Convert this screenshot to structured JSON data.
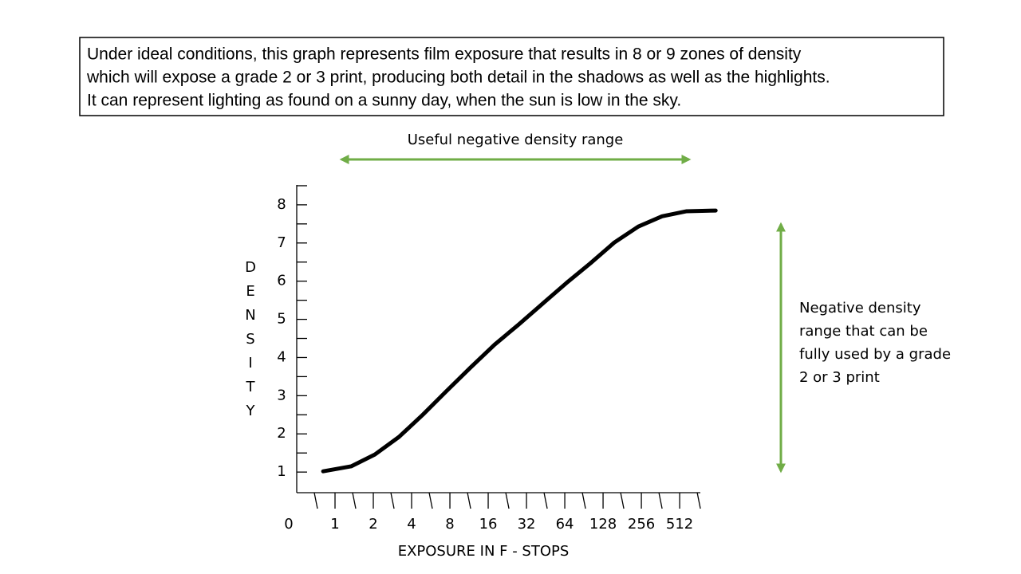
{
  "chart_data": {
    "type": "line",
    "note": [
      "Under ideal conditions, this graph represents film exposure that results in 8 or 9 zones of density",
      "which will expose a grade 2 or 3 print, producing both detail in the shadows as well as the highlights.",
      "It can represent lighting as found on a sunny day, when the sun is low in the sky."
    ],
    "top_annotation": "Useful negative density range",
    "side_annotation": [
      "Negative density",
      "range that can be",
      "fully used by a grade",
      "2 or 3 print"
    ],
    "x_label": "EXPOSURE IN F - STOPS",
    "y_label": "DENSITY",
    "x": [
      0.69,
      1.42,
      2.04,
      2.67,
      3.29,
      3.92,
      4.54,
      5.17,
      5.79,
      6.42,
      7.04,
      7.67,
      8.29,
      8.92,
      9.54,
      10.17,
      10.94
    ],
    "series": [
      {
        "color": "#000000",
        "values": [
          1.02,
          1.15,
          1.46,
          1.92,
          2.5,
          3.13,
          3.74,
          4.34,
          4.86,
          5.41,
          5.95,
          6.47,
          7.01,
          7.43,
          7.7,
          7.83,
          7.85
        ]
      }
    ],
    "xlim": [
      0,
      10.54
    ],
    "ylim": [
      0.46,
      8.52
    ],
    "xticks": [
      0,
      1,
      2,
      {
        "value": 3,
        "label": "4"
      },
      {
        "value": 4,
        "label": "8"
      },
      {
        "value": 5,
        "label": "16"
      },
      {
        "value": 6,
        "label": "32"
      },
      {
        "value": 7,
        "label": "64"
      },
      {
        "value": 8,
        "label": "128"
      },
      {
        "value": 9,
        "label": "256"
      },
      {
        "value": 10,
        "label": "512"
      }
    ],
    "xminorticks": [
      0.5,
      1.5,
      2.5,
      3.5,
      4.5,
      5.5,
      6.5,
      7.5,
      8.5,
      9.5,
      10.5
    ],
    "yticks": [
      1,
      2,
      3,
      4,
      5,
      6,
      7,
      8
    ],
    "yminorticks": [
      1.5,
      2.5,
      3.5,
      4.5,
      5.5,
      6.5,
      7.5,
      8.5
    ],
    "annotation_color": "#70ad47"
  }
}
